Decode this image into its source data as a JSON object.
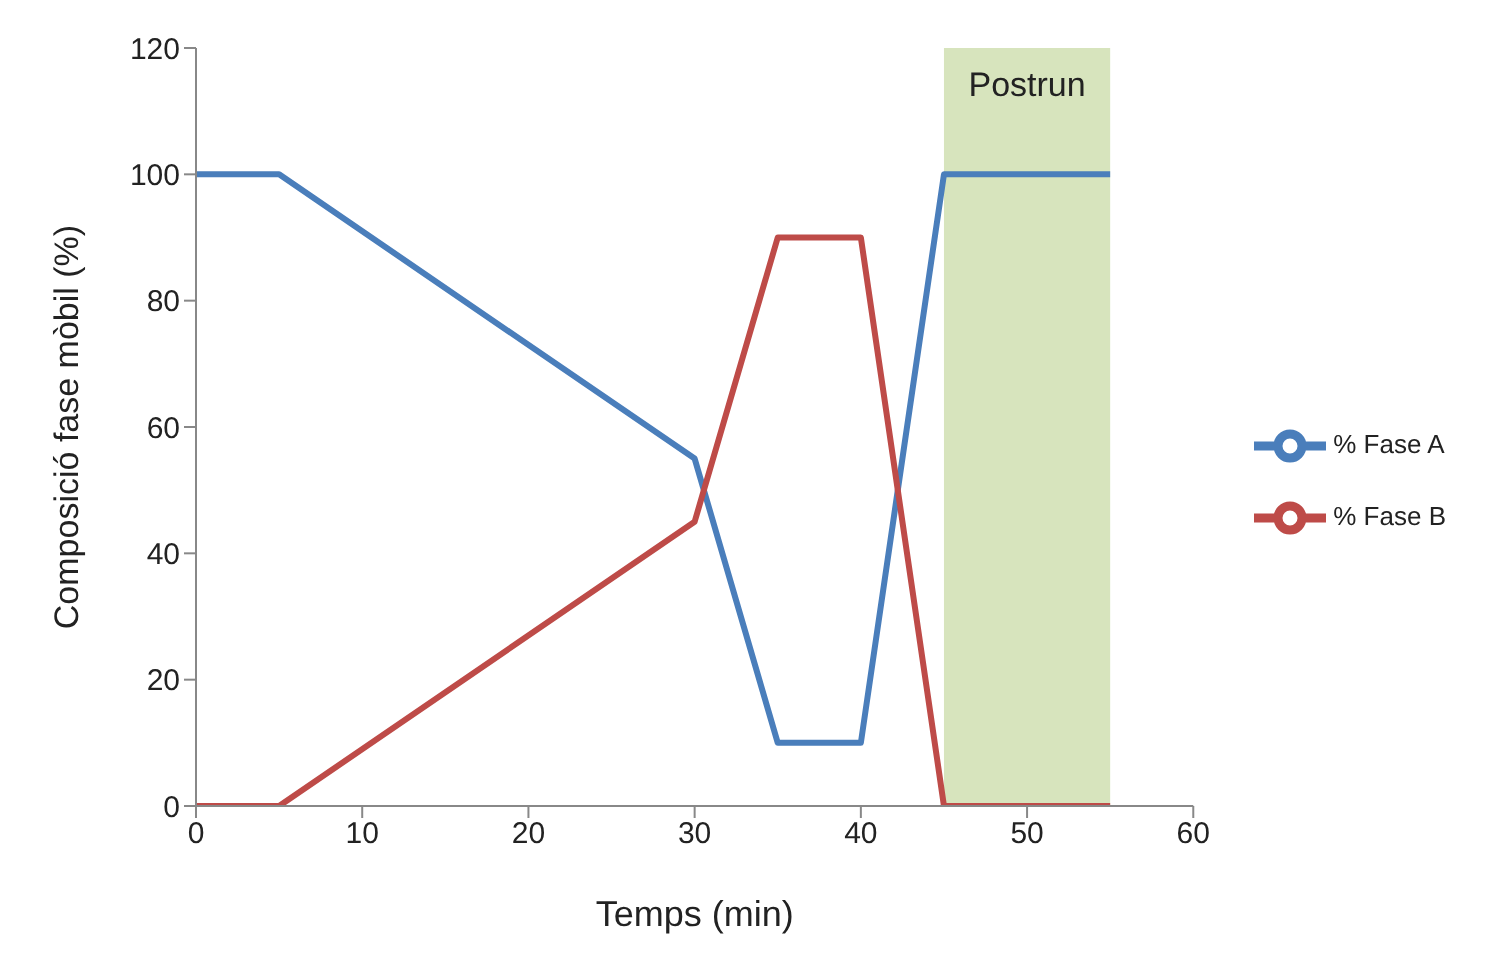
{
  "chart_data": {
    "type": "line",
    "xlabel": "Temps (min)",
    "ylabel": "Composició fase mòbil (%)",
    "x": [
      0,
      5,
      30,
      35,
      40,
      45,
      55
    ],
    "series": [
      {
        "name": "% Fase A",
        "color": "#4a7ebb",
        "values": [
          100,
          100,
          55,
          10,
          10,
          100,
          100
        ]
      },
      {
        "name": "% Fase B",
        "color": "#be4b48",
        "values": [
          0,
          0,
          45,
          90,
          90,
          0,
          0
        ]
      }
    ],
    "xlim": [
      0,
      60
    ],
    "xticks": [
      0,
      10,
      20,
      30,
      40,
      50,
      60
    ],
    "ylim": [
      0,
      120
    ],
    "yticks": [
      0,
      20,
      40,
      60,
      80,
      100,
      120
    ],
    "bands": [
      {
        "axis": "x",
        "from": 45,
        "to": 55,
        "label": "Postrun",
        "color": "#d7e4bd"
      }
    ],
    "grid": false,
    "legend": "right",
    "marker": "none",
    "line_style": "solid"
  }
}
